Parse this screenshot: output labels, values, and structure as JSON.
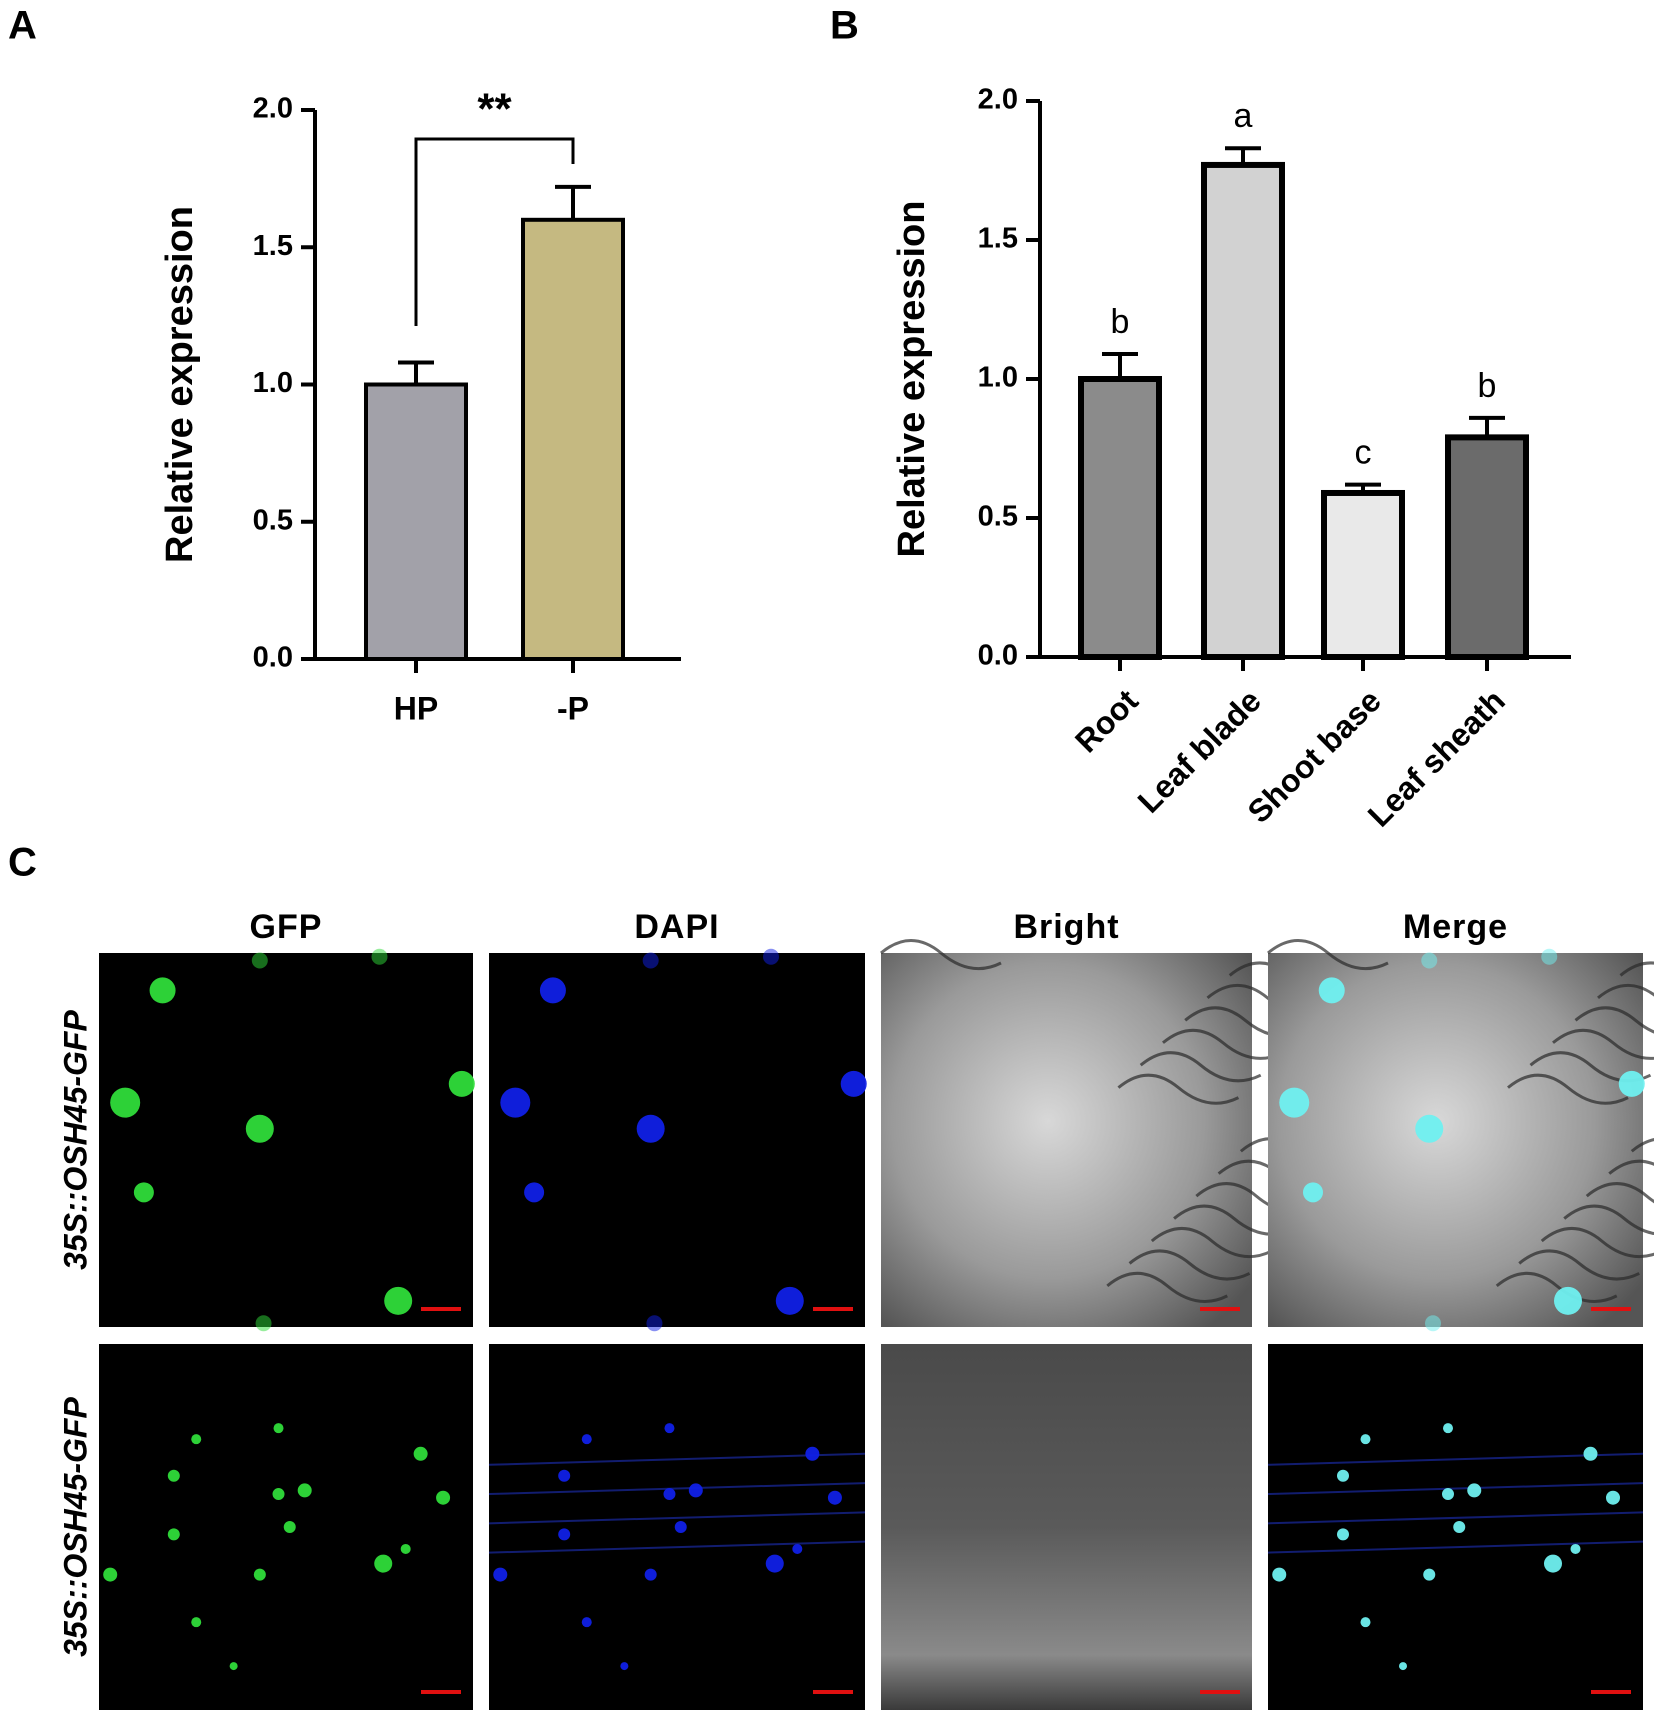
{
  "panel_labels": [
    "A",
    "B",
    "C"
  ],
  "chart_data": [
    {
      "type": "bar",
      "y_label": "Relative expression",
      "categories": [
        "HP",
        "-P"
      ],
      "values": [
        1.0,
        1.6
      ],
      "errors": [
        0.08,
        0.12
      ],
      "colors": [
        "#a2a1a9",
        "#c5b981"
      ],
      "annotation": "**",
      "ylim": [
        0,
        2
      ],
      "yticks": [
        {
          "value": 0,
          "label": "0.0"
        },
        0.5,
        {
          "value": 1,
          "label": "1.0"
        },
        1.5,
        {
          "value": 2,
          "label": "2.0"
        }
      ]
    },
    {
      "type": "bar",
      "y_label": "Relative expression",
      "categories": [
        "Root",
        "Leaf blade",
        "Shoot base",
        "Leaf sheath"
      ],
      "values": [
        1.0,
        1.77,
        0.59,
        0.79
      ],
      "errors": [
        0.09,
        0.06,
        0.03,
        0.07
      ],
      "letters": [
        "b",
        "a",
        "c",
        "b"
      ],
      "colors": [
        "#8b8b8b",
        "#d2d2d2",
        "#e9e9e9",
        "#6b6b6b"
      ],
      "ylim": [
        0,
        2
      ],
      "yticks": [
        {
          "value": 0,
          "label": "0.0"
        },
        0.5,
        {
          "value": 1,
          "label": "1.0"
        },
        1.5,
        {
          "value": 2,
          "label": "2.0"
        }
      ]
    }
  ],
  "microscopy": {
    "columns": [
      "GFP",
      "DAPI",
      "Bright",
      "Merge"
    ],
    "rows": [
      "35S::OSH45-GFP",
      "35S::OSH45-GFP"
    ]
  }
}
